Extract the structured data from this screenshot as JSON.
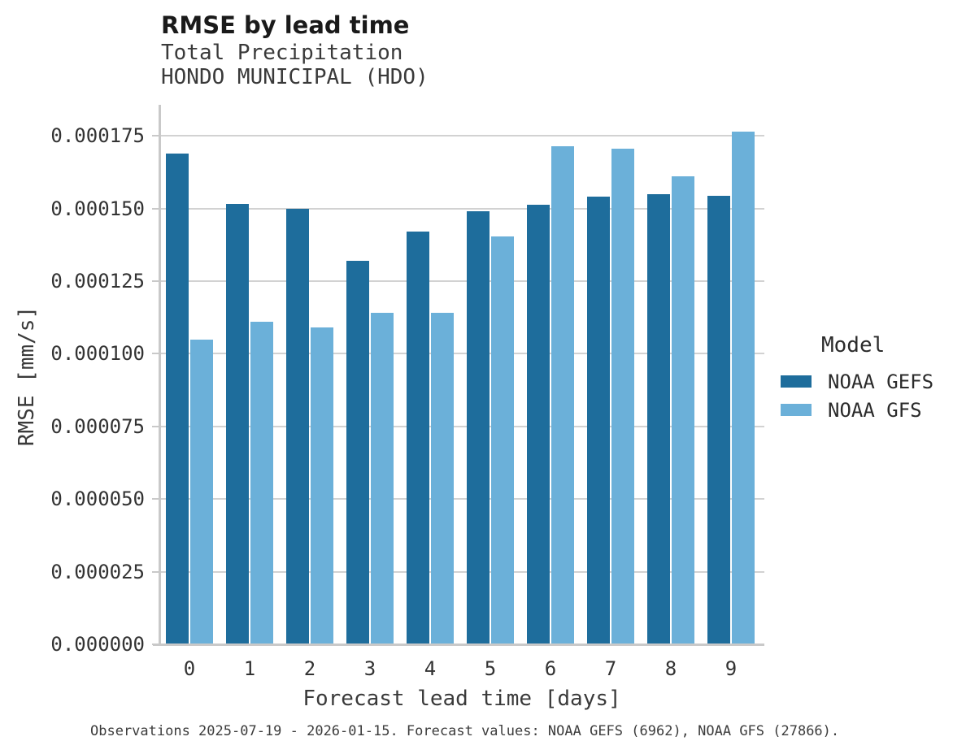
{
  "header": {
    "title": "RMSE by lead time",
    "subtitle_line1": "Total Precipitation",
    "subtitle_line2": "HONDO MUNICIPAL (HDO)"
  },
  "legend": {
    "title": "Model"
  },
  "footer": {
    "caption": "Observations 2025-07-19 - 2026-01-15. Forecast values: NOAA GEFS (6962), NOAA GFS (27866)."
  },
  "chart_data": {
    "type": "bar",
    "title": "RMSE by lead time",
    "subtitle": [
      "Total Precipitation",
      "HONDO MUNICIPAL (HDO)"
    ],
    "xlabel": "Forecast lead time [days]",
    "ylabel": "RMSE [mm/s]",
    "categories": [
      "0",
      "1",
      "2",
      "3",
      "4",
      "5",
      "6",
      "7",
      "8",
      "9"
    ],
    "series": [
      {
        "name": "NOAA GEFS",
        "color": "#1e6d9c",
        "values": [
          0.000169,
          0.0001515,
          0.00015,
          0.000132,
          0.000142,
          0.000149,
          0.0001513,
          0.000154,
          0.000155,
          0.0001545
        ]
      },
      {
        "name": "NOAA GFS",
        "color": "#6bb0d9",
        "values": [
          0.000105,
          0.000111,
          0.000109,
          0.000114,
          0.0001142,
          0.0001405,
          0.0001715,
          0.0001705,
          0.000161,
          0.0001765
        ]
      }
    ],
    "ylim": [
      0,
      0.0001857
    ],
    "yticks": {
      "values": [
        0,
        2.5e-05,
        5e-05,
        7.5e-05,
        0.0001,
        0.000125,
        0.00015,
        0.000175
      ],
      "labels": [
        "0.000000",
        "0.000025",
        "0.000050",
        "0.000075",
        "0.000100",
        "0.000125",
        "0.000150",
        "0.000175"
      ]
    },
    "grid": "horizontal-only",
    "legend_position": "right",
    "legend_title": "Model",
    "grid_color": "#d2d2d2",
    "axis_color": "#c9c9c9",
    "tick_text_color": "#333333"
  }
}
